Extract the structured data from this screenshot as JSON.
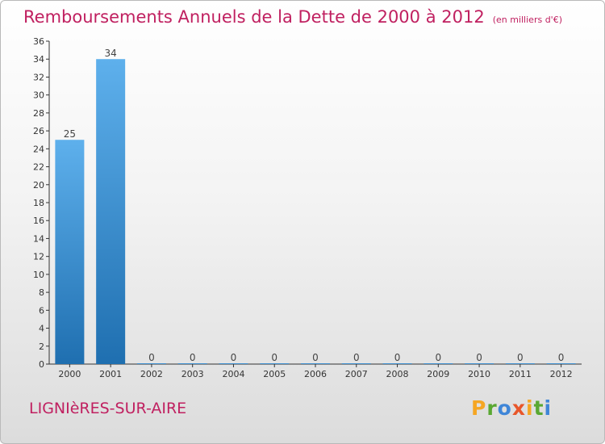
{
  "header": {
    "title": "Remboursements Annuels de la Dette de 2000 à 2012",
    "unit": "(en milliers d'€)"
  },
  "footer": {
    "commune": "LIGNIèRES-SUR-AIRE",
    "brand": "Proxiti",
    "brand_colors": [
      "#f5a623",
      "#5aa832",
      "#3f86d8",
      "#e8562a",
      "#f5a623",
      "#5aa832",
      "#3f86d8"
    ]
  },
  "colors": {
    "title": "#c02060",
    "bar_light": "#5eb0ec",
    "bar_dark": "#1f6fb0",
    "axis": "#333333"
  },
  "chart_data": {
    "type": "bar",
    "title": "Remboursements Annuels de la Dette de 2000 à 2012",
    "categories": [
      "2000",
      "2001",
      "2002",
      "2003",
      "2004",
      "2005",
      "2006",
      "2007",
      "2008",
      "2009",
      "2010",
      "2011",
      "2012"
    ],
    "values": [
      25,
      34,
      0,
      0,
      0,
      0,
      0,
      0,
      0,
      0,
      0,
      0,
      0
    ],
    "data_labels": [
      "25",
      "34",
      "0",
      "0",
      "0",
      "0",
      "0",
      "0",
      "0",
      "0",
      "0",
      "0",
      "0"
    ],
    "ylim": [
      0,
      36
    ],
    "yticks": [
      0,
      2,
      4,
      6,
      8,
      10,
      12,
      14,
      16,
      18,
      20,
      22,
      24,
      26,
      28,
      30,
      32,
      34,
      36
    ],
    "grid": false
  }
}
